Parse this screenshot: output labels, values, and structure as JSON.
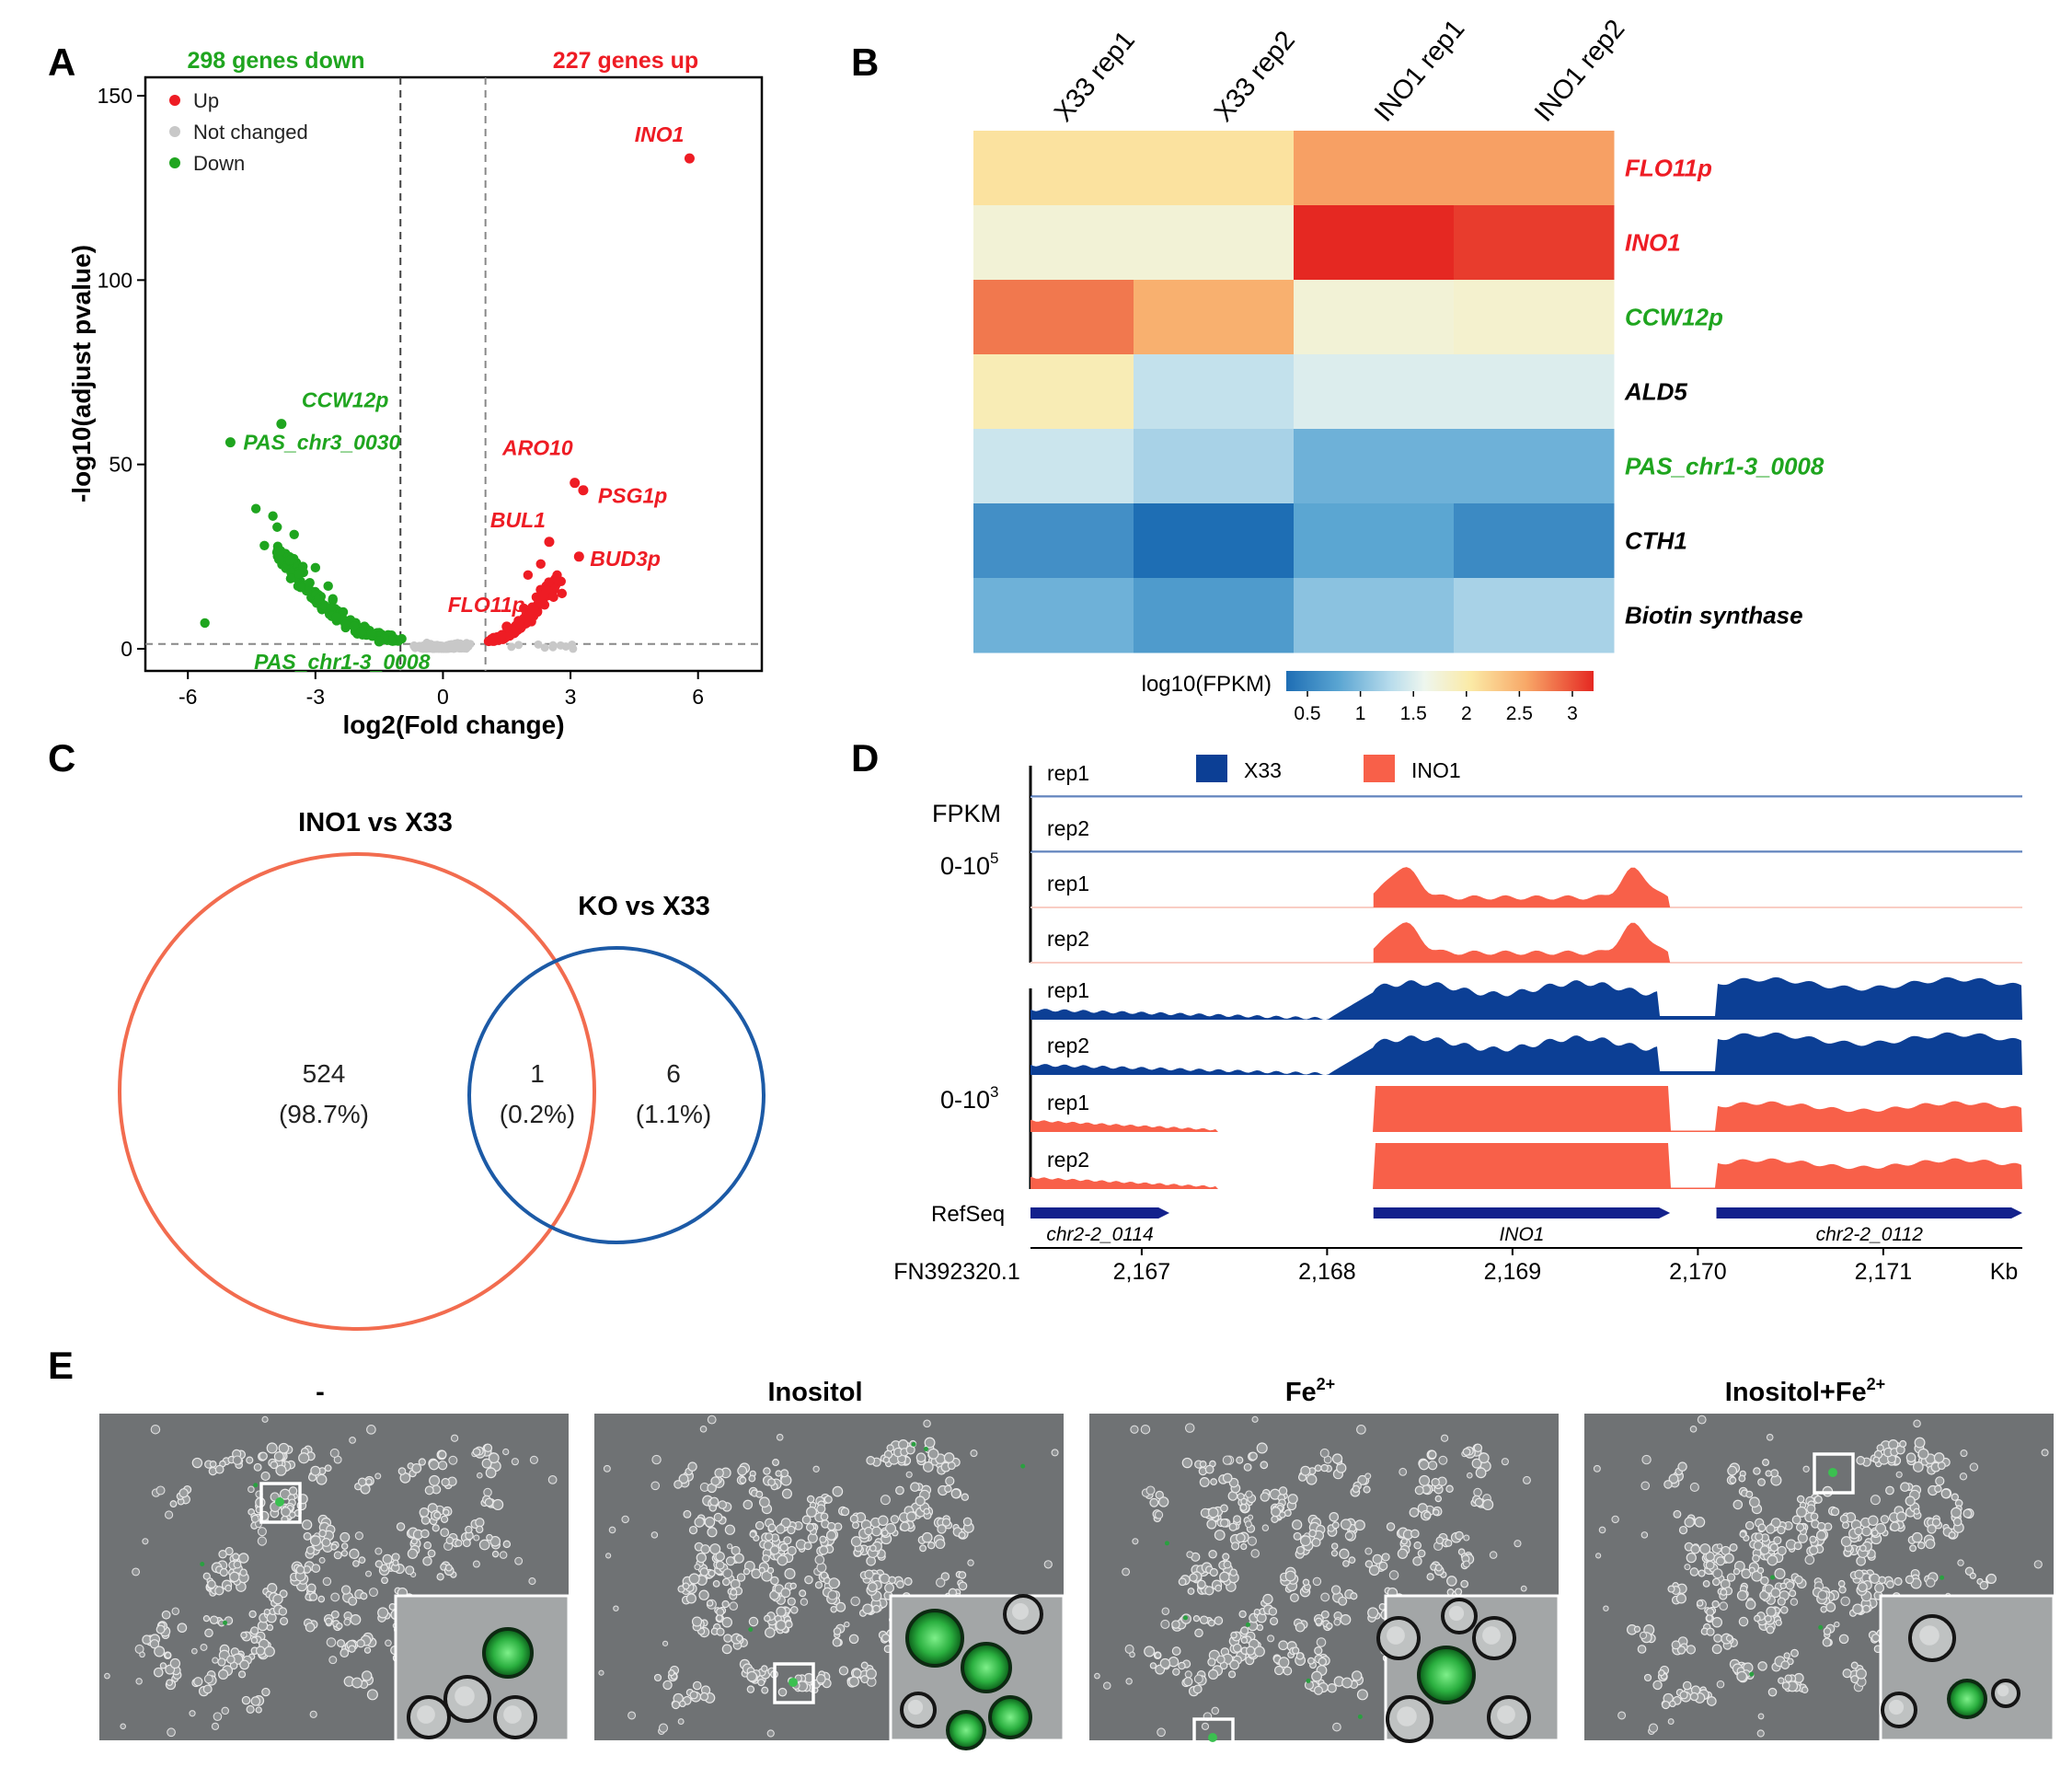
{
  "panel_labels": [
    "A",
    "B",
    "C",
    "D",
    "E"
  ],
  "chart_data": [
    {
      "id": "A",
      "type": "scatter",
      "title": "",
      "counts": {
        "down": "298 genes down",
        "up": "227 genes up"
      },
      "xlabel": "log2(Fold change)",
      "ylabel": "-log10(adjust pvalue)",
      "xlim": [
        -7.0,
        7.5
      ],
      "ylim": [
        -6,
        155
      ],
      "xticks": [
        -6,
        -3,
        0,
        3,
        6
      ],
      "yticks": [
        0,
        50,
        100,
        150
      ],
      "vlines": [
        -1,
        1
      ],
      "hline": 1.3,
      "legend": {
        "position": "top-left",
        "entries": [
          "Up",
          "Not changed",
          "Down"
        ]
      },
      "colors": {
        "Up": "#ee1c24",
        "Not changed": "#c8c8c8",
        "Down": "#1fa51f"
      },
      "labeled_points": [
        {
          "gene": "INO1",
          "x": 5.8,
          "y": 133,
          "group": "Up"
        },
        {
          "gene": "CCW12p",
          "x": -3.8,
          "y": 61,
          "group": "Down"
        },
        {
          "gene": "PAS_chr3_0030",
          "x": -5.0,
          "y": 56,
          "group": "Down"
        },
        {
          "gene": "ARO10",
          "x": 3.1,
          "y": 45,
          "group": "Up"
        },
        {
          "gene": "PSG1p",
          "x": 3.3,
          "y": 43,
          "group": "Up"
        },
        {
          "gene": "BUL1",
          "x": 2.5,
          "y": 29,
          "group": "Up"
        },
        {
          "gene": "BUD3p",
          "x": 3.2,
          "y": 25,
          "group": "Up"
        },
        {
          "gene": "FLO11p",
          "x": 1.5,
          "y": 6,
          "group": "Up"
        },
        {
          "gene": "PAS_chr1-3_0008",
          "x": -1.5,
          "y": 2,
          "group": "Down"
        }
      ],
      "label_style": {
        "italic": true
      }
    },
    {
      "id": "B",
      "type": "heatmap",
      "columns": [
        "X33 rep1",
        "X33 rep2",
        "INO1 rep1",
        "INO1 rep2"
      ],
      "rows": [
        {
          "gene": "FLO11p",
          "color": "#ee1c24",
          "values": [
            2.1,
            2.1,
            2.6,
            2.6
          ]
        },
        {
          "gene": "INO1",
          "color": "#ee1c24",
          "values": [
            1.75,
            1.75,
            3.2,
            3.1
          ]
        },
        {
          "gene": "CCW12p",
          "color": "#1fa51f",
          "values": [
            2.8,
            2.5,
            1.75,
            1.8
          ]
        },
        {
          "gene": "ALD5",
          "color": "#000000",
          "values": [
            1.95,
            1.35,
            1.5,
            1.5
          ]
        },
        {
          "gene": "PAS_chr1-3_0008",
          "color": "#1fa51f",
          "values": [
            1.4,
            1.2,
            0.9,
            0.9
          ]
        },
        {
          "gene": "CTH1",
          "color": "#000000",
          "values": [
            0.6,
            0.3,
            0.8,
            0.55
          ]
        },
        {
          "gene": "Biotin synthase",
          "color": "#000000",
          "values": [
            0.9,
            0.7,
            1.05,
            1.2
          ]
        }
      ],
      "colorbar": {
        "label": "log10(FPKM)",
        "min": 0.3,
        "max": 3.2,
        "ticks": [
          "0.5",
          "1",
          "1.5",
          "2",
          "2.5",
          "3"
        ]
      }
    },
    {
      "id": "C",
      "type": "venn",
      "sets": [
        {
          "name": "INO1 vs X33",
          "color": "#f26c4f"
        },
        {
          "name": "KO vs X33",
          "color": "#1c5aa6"
        }
      ],
      "regions": [
        {
          "count": "524",
          "pct": "(98.7%)"
        },
        {
          "count": "1",
          "pct": "(0.2%)"
        },
        {
          "count": "6",
          "pct": "(1.1%)"
        }
      ]
    },
    {
      "id": "D",
      "type": "area",
      "legend": [
        {
          "name": "X33",
          "color": "#0c3f95"
        },
        {
          "name": "INO1",
          "color": "#f86049"
        }
      ],
      "ylabel": "FPKM",
      "scale_labels": {
        "upper": "0-10",
        "lower": "0-10",
        "exponent_upper": "5",
        "exponent_lower": "3"
      },
      "tracks_upper": [
        "rep1",
        "rep2",
        "rep1",
        "rep2"
      ],
      "tracks_lower": [
        "rep1",
        "rep2",
        "rep1",
        "rep2"
      ],
      "track_samples_upper": [
        "X33",
        "X33",
        "INO1",
        "INO1"
      ],
      "track_samples_lower": [
        "X33",
        "X33",
        "INO1",
        "INO1"
      ],
      "refseq_label": "RefSeq",
      "genes": [
        {
          "name": "chr2-2_0114",
          "start": 2166.4,
          "end": 2167.15,
          "direction": "right"
        },
        {
          "name": "INO1",
          "start": 2168.25,
          "end": 2169.85,
          "direction": "right"
        },
        {
          "name": "chr2-2_0112",
          "start": 2170.1,
          "end": 2171.75,
          "direction": "right"
        }
      ],
      "axis": {
        "contig": "FN392320.1",
        "unit": "Kb",
        "xlim": [
          2166.4,
          2171.75
        ],
        "ticks": [
          "2,167",
          "2,168",
          "2,169",
          "2,170",
          "2,171"
        ],
        "tick_values": [
          2167,
          2168,
          2169,
          2170,
          2171
        ]
      }
    }
  ],
  "panelE": {
    "titles": [
      "-",
      "Inositol",
      "Fe",
      "Inositol+Fe"
    ],
    "superscripts": [
      "",
      "",
      "2+",
      "2+"
    ]
  }
}
